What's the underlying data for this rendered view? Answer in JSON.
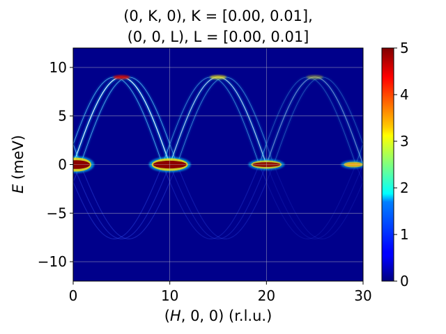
{
  "chart_data": {
    "type": "heatmap",
    "title_lines": [
      "(0, K, 0), K = [0.00, 0.01],",
      "(0, 0, L), L = [0.00, 0.01]"
    ],
    "xlabel": "(H, 0, 0) (r.l.u.)",
    "ylabel": "E (meV)",
    "xlim": [
      0,
      30
    ],
    "ylim": [
      -12,
      12
    ],
    "x_ticks": [
      0,
      10,
      20,
      30
    ],
    "x_tick_labels": [
      "0",
      "10",
      "20",
      "30"
    ],
    "y_ticks": [
      10,
      5,
      0,
      -5,
      -10
    ],
    "y_tick_labels": [
      "10",
      "5",
      "0",
      "−5",
      "−10"
    ],
    "grid": true,
    "colorbar": {
      "range": [
        0,
        5
      ],
      "ticks": [
        0,
        1,
        2,
        3,
        4,
        5
      ],
      "tick_labels": [
        "0",
        "1",
        "2",
        "3",
        "4",
        "5"
      ],
      "colormap": "jet"
    },
    "dispersion": {
      "period": 10,
      "max_energy_meV": 9.0,
      "branch_shifts": [
        0,
        0.75,
        -0.75
      ],
      "zone_intensity": [
        1.0,
        0.75,
        0.45,
        0.2
      ]
    },
    "colors": {
      "background": "#00008b",
      "grid": "#c8c8c8"
    }
  }
}
